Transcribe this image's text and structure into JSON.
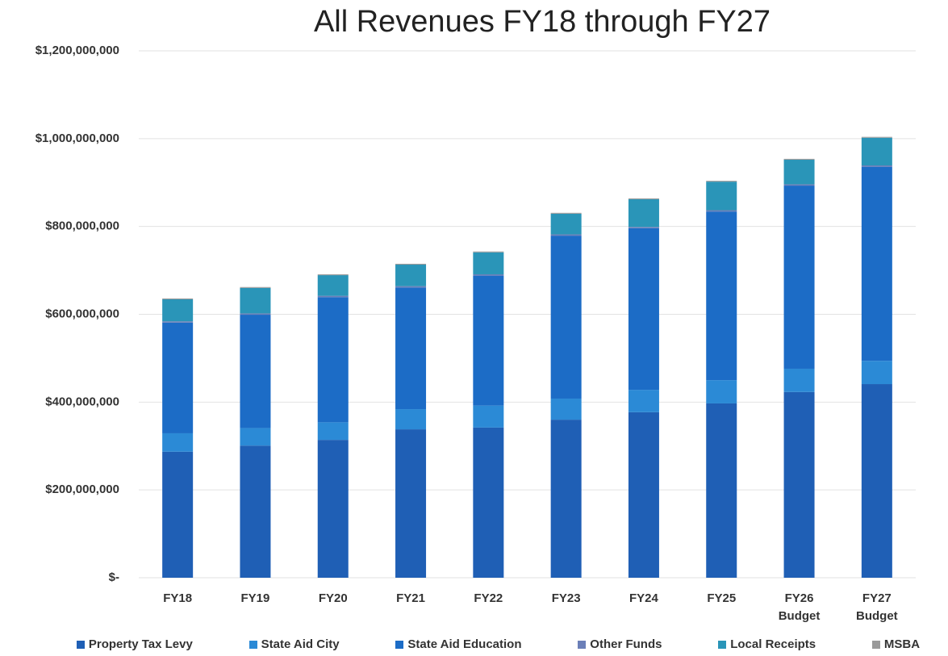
{
  "chart_data": {
    "type": "stacked_bar",
    "title": "All Revenues FY18 through FY27",
    "categories": [
      "FY18",
      "FY19",
      "FY20",
      "FY21",
      "FY22",
      "FY23",
      "FY24",
      "FY25",
      "FY26 Budget",
      "FY27 Budget"
    ],
    "series": [
      {
        "name": "Property Tax Levy",
        "color": "#1f5fb5",
        "values": [
          287000000,
          301000000,
          314000000,
          338000000,
          342000000,
          360000000,
          377000000,
          397000000,
          423000000,
          441000000
        ]
      },
      {
        "name": "State Aid City",
        "color": "#2b8ad6",
        "values": [
          42000000,
          40000000,
          40000000,
          46000000,
          50000000,
          48000000,
          51000000,
          53000000,
          53000000,
          53000000
        ]
      },
      {
        "name": "State Aid Education",
        "color": "#1c6cc6",
        "values": [
          252000000,
          258000000,
          285000000,
          277000000,
          296000000,
          371000000,
          368000000,
          384000000,
          417000000,
          442000000
        ]
      },
      {
        "name": "Other Funds",
        "color": "#6b7fb8",
        "values": [
          3000000,
          3000000,
          3000000,
          3000000,
          3000000,
          3000000,
          3000000,
          3000000,
          3000000,
          3000000
        ]
      },
      {
        "name": "Local Receipts",
        "color": "#2a95b8",
        "values": [
          50000000,
          58000000,
          47000000,
          49000000,
          50000000,
          47000000,
          63000000,
          65000000,
          56000000,
          63000000
        ]
      },
      {
        "name": "MSBA",
        "color": "#9a9a9a",
        "values": [
          2000000,
          2000000,
          2000000,
          2000000,
          2000000,
          2000000,
          2000000,
          2000000,
          2000000,
          2000000
        ]
      }
    ],
    "ylim": [
      0,
      1200000000
    ],
    "yticks": [
      {
        "value": 0,
        "label": "$-"
      },
      {
        "value": 200000000,
        "label": "$200,000,000"
      },
      {
        "value": 400000000,
        "label": "$400,000,000"
      },
      {
        "value": 600000000,
        "label": "$600,000,000"
      },
      {
        "value": 800000000,
        "label": "$800,000,000"
      },
      {
        "value": 1000000000,
        "label": "$1,000,000,000"
      },
      {
        "value": 1200000000,
        "label": "$1,200,000,000"
      }
    ],
    "grid": true
  }
}
